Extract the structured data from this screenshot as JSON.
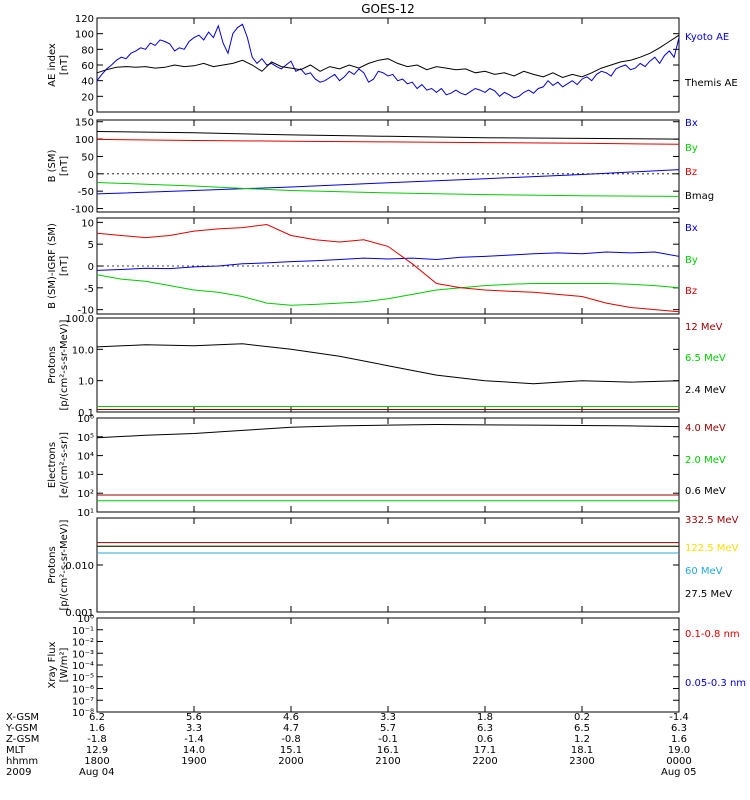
{
  "title": "GOES-12",
  "colors": {
    "black": "#000000",
    "red": "#e00000",
    "green": "#00cc00",
    "blue": "#0000dd",
    "cyan": "#22aadd",
    "yellow": "#ffdd00",
    "darkred": "#990000"
  },
  "x_ticks": [
    "1800",
    "1900",
    "2000",
    "2100",
    "2200",
    "2300",
    "0000"
  ],
  "chart_data": [
    {
      "type": "line",
      "id": "ae",
      "ylabel": [
        "AE index",
        "[nT]"
      ],
      "ylim": [
        0,
        120
      ],
      "y_ticks": [
        "0",
        "20",
        "40",
        "60",
        "80",
        "100",
        "120"
      ],
      "series": [
        {
          "name": "Kyoto AE",
          "color": "#0000dd",
          "x": [
            0,
            0.05,
            0.1,
            0.15,
            0.2,
            0.25,
            0.3,
            0.35,
            0.4,
            0.45,
            0.5,
            0.55,
            0.6,
            0.65,
            0.7,
            0.75,
            0.8,
            0.85,
            0.9,
            0.95,
            1.0,
            1.05,
            1.1,
            1.15,
            1.2,
            1.25,
            1.3,
            1.35,
            1.4,
            1.45,
            1.5,
            1.55,
            1.6,
            1.65,
            1.7,
            1.75,
            1.8,
            1.85,
            1.9,
            1.95,
            2.0,
            2.05,
            2.1,
            2.15,
            2.2,
            2.25,
            2.3,
            2.35,
            2.4,
            2.45,
            2.5,
            2.55,
            2.6,
            2.65,
            2.7,
            2.75,
            2.8,
            2.85,
            2.9,
            2.95,
            3.0,
            3.05,
            3.1,
            3.15,
            3.2,
            3.25,
            3.3,
            3.35,
            3.4,
            3.45,
            3.5,
            3.55,
            3.6,
            3.65,
            3.7,
            3.75,
            3.8,
            3.85,
            3.9,
            3.95,
            4.0,
            4.05,
            4.1,
            4.15,
            4.2,
            4.25,
            4.3,
            4.35,
            4.4,
            4.45,
            4.5,
            4.55,
            4.6,
            4.65,
            4.7,
            4.75,
            4.8,
            4.85,
            4.9,
            4.95,
            5.0,
            5.05,
            5.1,
            5.15,
            5.2,
            5.25,
            5.3,
            5.35,
            5.4,
            5.45,
            5.5,
            5.55,
            5.6,
            5.65,
            5.7,
            5.75,
            5.8,
            5.85,
            5.9,
            5.95,
            6.0
          ],
          "y": [
            40,
            48,
            55,
            60,
            66,
            70,
            68,
            75,
            78,
            82,
            80,
            88,
            85,
            92,
            90,
            87,
            78,
            82,
            80,
            90,
            95,
            98,
            92,
            102,
            95,
            110,
            88,
            75,
            100,
            108,
            112,
            95,
            70,
            62,
            68,
            60,
            62,
            58,
            55,
            60,
            65,
            52,
            55,
            48,
            50,
            42,
            38,
            40,
            44,
            48,
            40,
            45,
            52,
            48,
            55,
            50,
            38,
            42,
            52,
            50,
            46,
            48,
            40,
            42,
            36,
            38,
            30,
            35,
            28,
            30,
            25,
            30,
            22,
            24,
            28,
            24,
            22,
            26,
            30,
            28,
            25,
            30,
            27,
            20,
            25,
            22,
            18,
            20,
            25,
            28,
            24,
            30,
            32,
            40,
            34,
            38,
            32,
            36,
            40,
            35,
            42,
            45,
            40,
            48,
            52,
            50,
            46,
            55,
            58,
            60,
            54,
            56,
            62,
            58,
            65,
            70,
            62,
            72,
            78,
            70,
            95
          ]
        },
        {
          "name": "Themis AE",
          "color": "#000000",
          "x": [
            0,
            0.1,
            0.2,
            0.3,
            0.4,
            0.5,
            0.6,
            0.7,
            0.8,
            0.9,
            1.0,
            1.1,
            1.2,
            1.3,
            1.4,
            1.5,
            1.6,
            1.7,
            1.8,
            1.9,
            2.0,
            2.1,
            2.2,
            2.3,
            2.4,
            2.5,
            2.6,
            2.7,
            2.8,
            2.9,
            3.0,
            3.1,
            3.2,
            3.3,
            3.4,
            3.5,
            3.6,
            3.7,
            3.8,
            3.9,
            4.0,
            4.1,
            4.2,
            4.3,
            4.4,
            4.5,
            4.6,
            4.7,
            4.8,
            4.9,
            5.0,
            5.1,
            5.2,
            5.3,
            5.4,
            5.5,
            5.6,
            5.7,
            5.8,
            5.9,
            6.0
          ],
          "y": [
            50,
            54,
            57,
            58,
            57,
            58,
            56,
            57,
            60,
            58,
            59,
            62,
            58,
            60,
            62,
            66,
            60,
            52,
            64,
            58,
            56,
            54,
            60,
            52,
            58,
            55,
            60,
            56,
            62,
            66,
            68,
            62,
            58,
            60,
            54,
            58,
            56,
            54,
            55,
            50,
            52,
            48,
            50,
            46,
            52,
            48,
            45,
            50,
            44,
            48,
            45,
            50,
            56,
            60,
            64,
            66,
            70,
            75,
            82,
            90,
            98
          ]
        }
      ]
    },
    {
      "type": "line",
      "id": "bsm",
      "ylabel": [
        "B (SM)",
        "[nT]"
      ],
      "ylim": [
        -110,
        155
      ],
      "y_ticks": [
        "-100",
        "-50",
        "0",
        "50",
        "100",
        "150"
      ],
      "y_tick_values": [
        -100,
        -50,
        0,
        50,
        100,
        150
      ],
      "dashed_zero": true,
      "series": [
        {
          "name": "Bx",
          "color": "#0000dd",
          "x": [
            0,
            1,
            2,
            3,
            4,
            5,
            6
          ],
          "y": [
            -58,
            -48,
            -38,
            -26,
            -14,
            -2,
            12
          ]
        },
        {
          "name": "By",
          "color": "#00cc00",
          "x": [
            0,
            0.5,
            1,
            1.5,
            2,
            3,
            4,
            5,
            6
          ],
          "y": [
            -25,
            -30,
            -35,
            -42,
            -48,
            -55,
            -60,
            -63,
            -65
          ]
        },
        {
          "name": "Bz",
          "color": "#e00000",
          "x": [
            0,
            1,
            2,
            3,
            4,
            5,
            6
          ],
          "y": [
            99,
            96,
            94,
            92,
            90,
            88,
            85
          ]
        },
        {
          "name": "Bmag",
          "color": "#000000",
          "x": [
            0,
            1,
            2,
            3,
            4,
            5,
            6
          ],
          "y": [
            122,
            118,
            112,
            108,
            104,
            102,
            100
          ]
        }
      ]
    },
    {
      "type": "line",
      "id": "bdiff",
      "ylabel": [
        "B (SM)-IGRF (SM)",
        "[nT]"
      ],
      "ylim": [
        -11,
        11
      ],
      "y_ticks": [
        "-10",
        "-5",
        "0",
        "5",
        "10"
      ],
      "y_tick_values": [
        -10,
        -5,
        0,
        5,
        10
      ],
      "dashed_zero": true,
      "series": [
        {
          "name": "Bx",
          "color": "#0000dd",
          "x": [
            0,
            0.25,
            0.5,
            0.75,
            1,
            1.25,
            1.5,
            1.75,
            2,
            2.25,
            2.5,
            2.75,
            3,
            3.25,
            3.5,
            3.75,
            4,
            4.25,
            4.5,
            4.75,
            5,
            5.25,
            5.5,
            5.75,
            6
          ],
          "y": [
            -1,
            -0.8,
            -0.5,
            -0.6,
            -0.2,
            0,
            0.5,
            0.7,
            1,
            1.2,
            1.5,
            1.8,
            1.6,
            1.8,
            1.5,
            2,
            2.2,
            2.5,
            2.8,
            3,
            2.8,
            3.2,
            3,
            3.2,
            2.2
          ]
        },
        {
          "name": "By",
          "color": "#00cc00",
          "x": [
            0,
            0.25,
            0.5,
            0.75,
            1,
            1.25,
            1.5,
            1.75,
            2,
            2.25,
            2.5,
            2.75,
            3,
            3.25,
            3.5,
            3.75,
            4,
            4.25,
            4.5,
            4.75,
            5,
            5.25,
            5.5,
            5.75,
            6
          ],
          "y": [
            -2,
            -3,
            -3.5,
            -4.5,
            -5.5,
            -6,
            -7,
            -8.5,
            -9,
            -8.8,
            -8.5,
            -8.2,
            -7.5,
            -6.5,
            -5.5,
            -5,
            -4.5,
            -4.2,
            -4,
            -4,
            -4,
            -4,
            -4.2,
            -4.5,
            -5
          ]
        },
        {
          "name": "Bz",
          "color": "#e00000",
          "x": [
            0,
            0.25,
            0.5,
            0.75,
            1,
            1.25,
            1.5,
            1.75,
            2,
            2.25,
            2.5,
            2.75,
            3,
            3.25,
            3.5,
            3.75,
            4,
            4.25,
            4.5,
            4.75,
            5,
            5.25,
            5.5,
            5.75,
            6
          ],
          "y": [
            7.5,
            7,
            6.5,
            7,
            8,
            8.5,
            8.8,
            9.5,
            7,
            6,
            5.5,
            6,
            4.5,
            0.5,
            -4,
            -5,
            -5.5,
            -5.8,
            -6,
            -6.5,
            -7,
            -8.5,
            -9.5,
            -10,
            -10.5
          ]
        }
      ]
    },
    {
      "type": "line",
      "id": "protons_low",
      "ylabel": [
        "Protons",
        "[p/(cm²-s-sr-MeV)]"
      ],
      "yscale": "log",
      "ylim": [
        0.1,
        100
      ],
      "y_ticks": [
        "0.1",
        "1.0",
        "10.0",
        "100.0"
      ],
      "y_tick_values": [
        0.1,
        1,
        10,
        100
      ],
      "series": [
        {
          "name": "12 MeV",
          "color": "#990000",
          "x": [
            0,
            6
          ],
          "y": [
            0.12,
            0.12
          ]
        },
        {
          "name": "6.5 MeV",
          "color": "#00cc00",
          "x": [
            0,
            6
          ],
          "y": [
            0.15,
            0.15
          ]
        },
        {
          "name": "2.4 MeV",
          "color": "#000000",
          "x": [
            0,
            0.5,
            1,
            1.5,
            2,
            2.5,
            3,
            3.5,
            4,
            4.5,
            5,
            5.5,
            6
          ],
          "y": [
            12,
            14,
            13,
            15,
            10,
            6,
            3,
            1.5,
            1,
            0.8,
            1,
            0.9,
            1
          ]
        }
      ]
    },
    {
      "type": "line",
      "id": "electrons",
      "ylabel": [
        "Electrons",
        "[e/(cm²-s-sr)]"
      ],
      "yscale": "log",
      "ylim": [
        10,
        1000000
      ],
      "y_ticks": [
        "10¹",
        "10²",
        "10³",
        "10⁴",
        "10⁵",
        "10⁶"
      ],
      "y_tick_values": [
        10,
        100,
        1000,
        10000,
        100000,
        1000000
      ],
      "series": [
        {
          "name": "4.0 MeV",
          "color": "#990000",
          "x": [
            0,
            6
          ],
          "y": [
            80,
            80
          ]
        },
        {
          "name": "2.0 MeV",
          "color": "#00cc00",
          "x": [
            0,
            6
          ],
          "y": [
            40,
            40
          ]
        },
        {
          "name": "0.6 MeV",
          "color": "#000000",
          "x": [
            0,
            0.5,
            1,
            1.5,
            2,
            2.5,
            3,
            3.5,
            4,
            4.5,
            5,
            5.5,
            6
          ],
          "y": [
            90000,
            120000,
            150000,
            220000,
            320000,
            380000,
            420000,
            450000,
            430000,
            420000,
            400000,
            380000,
            350000
          ]
        }
      ]
    },
    {
      "type": "line",
      "id": "protons_high",
      "ylabel": [
        "Protons",
        "[p/(cm²-s-sr-MeV)]"
      ],
      "yscale": "log",
      "ylim": [
        0.001,
        0.1
      ],
      "y_ticks": [
        "0.001",
        "0.010"
      ],
      "y_tick_values": [
        0.001,
        0.01
      ],
      "series": [
        {
          "name": "332.5 MeV",
          "color": "#990000",
          "x": [
            0,
            6
          ],
          "y": [
            0.03,
            0.03
          ]
        },
        {
          "name": "122.5 MeV",
          "color": "#ffdd00",
          "x": [
            0,
            6
          ],
          "y": [
            0.025,
            0.025
          ]
        },
        {
          "name": "60 MeV",
          "color": "#22aadd",
          "x": [
            0,
            6
          ],
          "y": [
            0.018,
            0.018
          ]
        },
        {
          "name": "27.5 MeV",
          "color": "#000000",
          "x": [
            0,
            6
          ],
          "y": [
            0.025,
            0.025
          ]
        }
      ]
    },
    {
      "type": "line",
      "id": "xray",
      "ylabel": [
        "Xray Flux",
        "[W/m²]"
      ],
      "yscale": "log",
      "ylim": [
        1e-08,
        1
      ],
      "y_ticks": [
        "10⁻⁸",
        "10⁻⁷",
        "10⁻⁶",
        "10⁻⁵",
        "10⁻⁴",
        "10⁻³",
        "10⁻²",
        "10⁻¹",
        "10⁰"
      ],
      "y_tick_values": [
        1e-08,
        1e-07,
        1e-06,
        1e-05,
        0.0001,
        0.001,
        0.01,
        0.1,
        1
      ],
      "series": [
        {
          "name": "0.1-0.8 nm",
          "color": "#e00000",
          "x": [],
          "y": []
        },
        {
          "name": "0.05-0.3 nm",
          "color": "#0000dd",
          "x": [],
          "y": []
        }
      ]
    }
  ],
  "orbit_table": {
    "row_labels": [
      "X-GSM",
      "Y-GSM",
      "Z-GSM",
      "MLT",
      "hhmm",
      "2009"
    ],
    "columns": [
      [
        "6.2",
        "1.6",
        "-1.8",
        "12.9",
        "1800",
        "Aug 04"
      ],
      [
        "5.6",
        "3.3",
        "-1.4",
        "14.0",
        "1900",
        ""
      ],
      [
        "4.6",
        "4.7",
        "-0.8",
        "15.1",
        "2000",
        ""
      ],
      [
        "3.3",
        "5.7",
        "-0.1",
        "16.1",
        "2100",
        ""
      ],
      [
        "1.8",
        "6.3",
        "0.6",
        "17.1",
        "2200",
        ""
      ],
      [
        "0.2",
        "6.5",
        "1.2",
        "18.1",
        "2300",
        ""
      ],
      [
        "-1.4",
        "6.3",
        "1.6",
        "19.0",
        "0000",
        "Aug 05"
      ]
    ]
  }
}
